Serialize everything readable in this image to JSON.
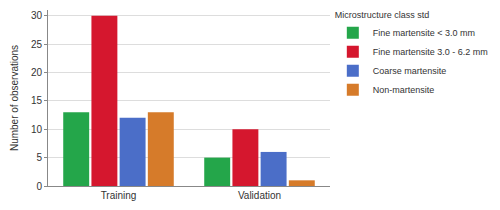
{
  "chart_data": {
    "type": "bar",
    "ylabel": "Number of observations",
    "legend_title": "Microstructure class std",
    "categories": [
      "Training",
      "Validation"
    ],
    "series": [
      {
        "name": "Fine martensite < 3.0 mm",
        "color": "#24a64a",
        "values": [
          13,
          5
        ]
      },
      {
        "name": "Fine martensite 3.0 - 6.2 mm",
        "color": "#d5172e",
        "values": [
          30,
          10
        ]
      },
      {
        "name": "Coarse martensite",
        "color": "#4b6ec8",
        "values": [
          12,
          6
        ]
      },
      {
        "name": "Non-martensite",
        "color": "#d67b2a",
        "values": [
          13,
          1
        ]
      }
    ],
    "ylim": [
      0,
      31
    ],
    "yticks": [
      0,
      5,
      10,
      15,
      20,
      25,
      30
    ],
    "grid": true,
    "legend": "right"
  }
}
